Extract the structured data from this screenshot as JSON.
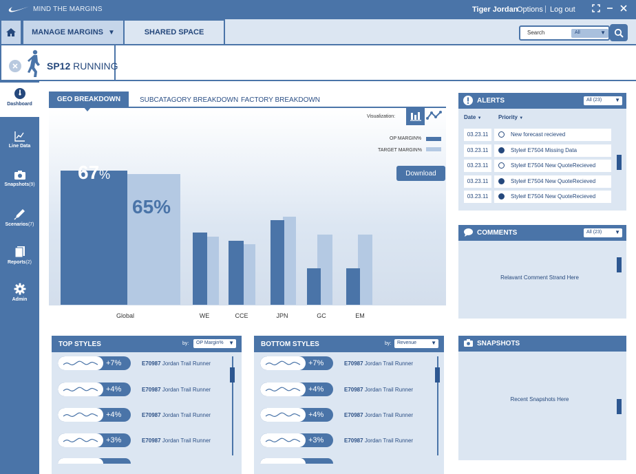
{
  "app": {
    "title": "MIND THE MARGINS",
    "user": "Tiger Jordan",
    "options_label": "Options",
    "logout_label": "Log out"
  },
  "nav": {
    "manage_label": "MANAGE MARGINS",
    "shared_label": "SHARED SPACE"
  },
  "search": {
    "label": "Search",
    "scope": "All"
  },
  "page": {
    "title_bold": "SP12",
    "title_rest": "RUNNING"
  },
  "sidebar": {
    "items": [
      {
        "label": "Dashboard",
        "icon": "dashboard-gauge-icon",
        "count": ""
      },
      {
        "label": "Line Data",
        "icon": "line-chart-icon",
        "count": ""
      },
      {
        "label": "Snapshots",
        "icon": "camera-icon",
        "count": "(9)"
      },
      {
        "label": "Scenarios",
        "icon": "pencil-icon",
        "count": "(7)"
      },
      {
        "label": "Reports",
        "icon": "document-icon",
        "count": "(2)"
      },
      {
        "label": "Admin",
        "icon": "gear-icon",
        "count": ""
      }
    ]
  },
  "geo": {
    "tabs": [
      "GEO BREAKDOWN",
      "SUBCATAGORY BREAKDOWN",
      "FACTORY BREAKDOWN"
    ],
    "visualization_label": "Visualization:",
    "legend": [
      "OP MARGIN%",
      "TARGET MARGIN%"
    ],
    "download_label": "Download",
    "global_op": "67",
    "global_target": "65%",
    "pct_sign": "%"
  },
  "chart_data": {
    "type": "bar",
    "categories": [
      "Global",
      "WE",
      "CCE",
      "JPN",
      "GC",
      "EM"
    ],
    "series": [
      {
        "name": "OP MARGIN%",
        "values": [
          67,
          36,
          32,
          42,
          18,
          18
        ]
      },
      {
        "name": "TARGET MARGIN%",
        "values": [
          65,
          34,
          30,
          44,
          35,
          35
        ]
      }
    ],
    "colors": {
      "op": "#4a74a8",
      "target": "#b4c9e3"
    },
    "ylim": [
      0,
      85
    ],
    "xlabel": "",
    "ylabel": "",
    "title": ""
  },
  "top_styles": {
    "title": "TOP STYLES",
    "by_label": "by:",
    "sort": "OP Margin%",
    "rows": [
      {
        "pct": "+7%",
        "code": "E70987",
        "name": "Jordan Trail Runner"
      },
      {
        "pct": "+4%",
        "code": "E70987",
        "name": "Jordan Trail Runner"
      },
      {
        "pct": "+4%",
        "code": "E70987",
        "name": "Jordan Trail Runner"
      },
      {
        "pct": "+3%",
        "code": "E70987",
        "name": "Jordan Trail Runner"
      }
    ]
  },
  "bottom_styles": {
    "title": "BOTTOM STYLES",
    "by_label": "by:",
    "sort": "Revenue",
    "rows": [
      {
        "pct": "+7%",
        "code": "E70987",
        "name": "Jordan Trail Runner"
      },
      {
        "pct": "+4%",
        "code": "E70987",
        "name": "Jordan Trail Runner"
      },
      {
        "pct": "+4%",
        "code": "E70987",
        "name": "Jordan Trail Runner"
      },
      {
        "pct": "+3%",
        "code": "E70987",
        "name": "Jordan Trail Runner"
      }
    ]
  },
  "alerts": {
    "title": "ALERTS",
    "filter": "All (23)",
    "col_date": "Date",
    "col_priority": "Priority",
    "rows": [
      {
        "date": "03.23.11",
        "msg": "New forecast recieved",
        "filled": false
      },
      {
        "date": "03.23.11",
        "msg": "Style# E7504 Missing Data",
        "filled": true
      },
      {
        "date": "03.23.11",
        "msg": "Style# E7504 New QuoteRecieved",
        "filled": false
      },
      {
        "date": "03.23.11",
        "msg": "Style# E7504 New QuoteRecieved",
        "filled": true
      },
      {
        "date": "03.23.11",
        "msg": "Style# E7504 New QuoteRecieved",
        "filled": true
      }
    ]
  },
  "comments": {
    "title": "COMMENTS",
    "filter": "All (23)",
    "placeholder": "Relavant Comment Strand Here"
  },
  "snapshots": {
    "title": "SNAPSHOTS",
    "placeholder": "Recent Snapshots Here"
  }
}
